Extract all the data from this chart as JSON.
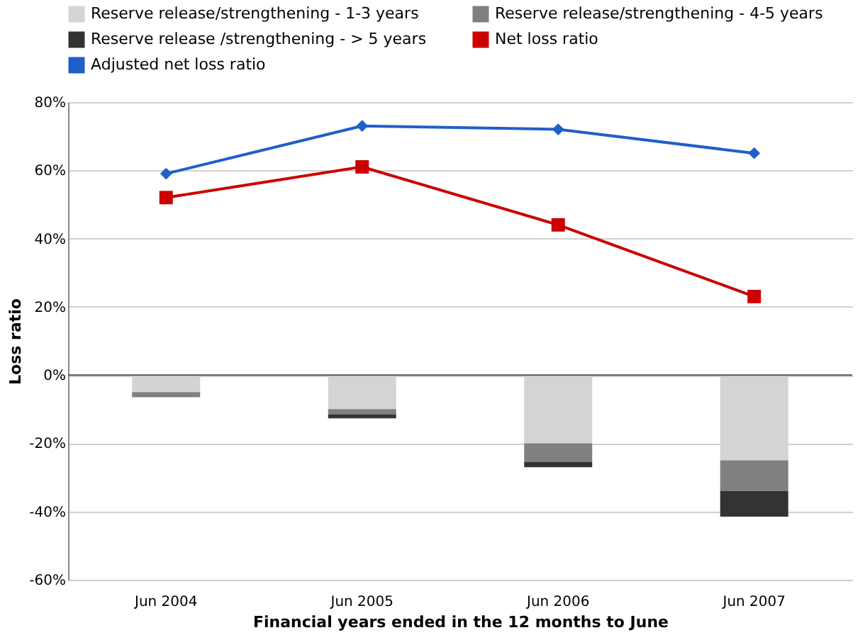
{
  "chart_data": {
    "type": "bar",
    "stacked": true,
    "xlabel": "Financial years ended in the 12 months to June",
    "ylabel": "Loss ratio",
    "categories": [
      "Jun 2004",
      "Jun 2005",
      "Jun 2006",
      "Jun 2007"
    ],
    "series": [
      {
        "name": "Reserve release/strengthening - 1-3 years",
        "color": "#d4d4d4",
        "values": [
          -5,
          -10,
          -20,
          -25
        ]
      },
      {
        "name": "Reserve release/strengthening - 4-5 years",
        "color": "#808080",
        "values": [
          -1.5,
          -1.5,
          -5.5,
          -9
        ]
      },
      {
        "name": "Reserve release /strengthening - > 5 years",
        "color": "#333333",
        "values": [
          0,
          -1.2,
          -1.5,
          -7.5
        ]
      },
      {
        "name": "Net loss ratio",
        "color": "#cc0000",
        "type": "line",
        "marker": "square",
        "values": [
          52,
          61,
          44,
          23
        ]
      },
      {
        "name": "Adjusted net loss ratio",
        "color": "#1f5fc8",
        "type": "line",
        "marker": "diamond",
        "values": [
          59,
          73,
          72,
          65
        ]
      }
    ],
    "ylim": [
      -60,
      80
    ],
    "yticks": [
      {
        "value": -60,
        "label": "-60%"
      },
      {
        "value": -40,
        "label": "-40%"
      },
      {
        "value": -20,
        "label": "-20%"
      },
      {
        "value": 0,
        "label": "0%"
      },
      {
        "value": 20,
        "label": "20%"
      },
      {
        "value": 40,
        "label": "40%"
      },
      {
        "value": 60,
        "label": "60%"
      },
      {
        "value": 80,
        "label": "80%"
      }
    ],
    "grid": "y",
    "legend": "top"
  }
}
